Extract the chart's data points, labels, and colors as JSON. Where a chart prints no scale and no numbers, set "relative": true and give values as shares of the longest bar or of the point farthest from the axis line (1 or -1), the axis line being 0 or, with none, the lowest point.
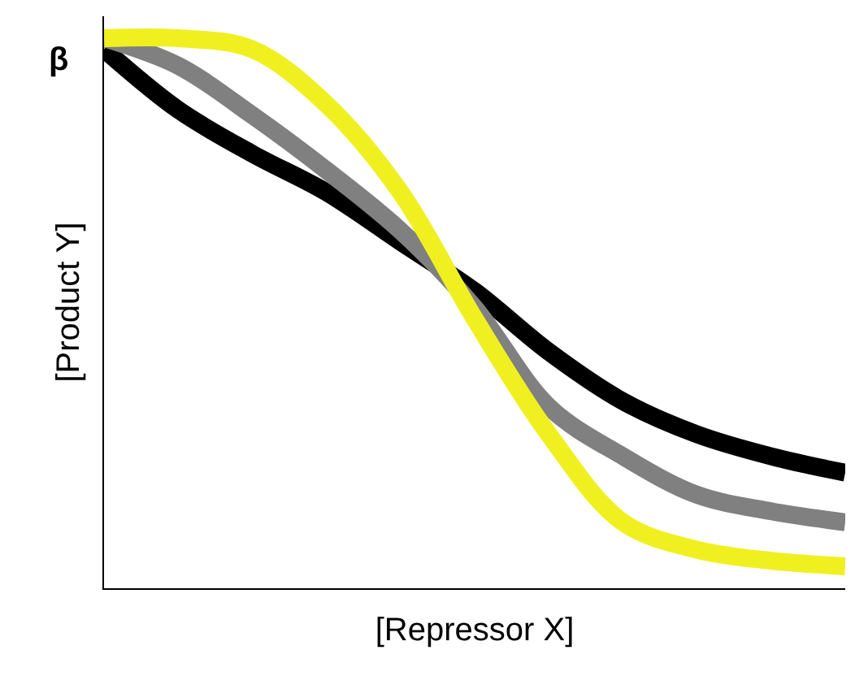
{
  "chart_data": {
    "type": "line",
    "relative": true,
    "xlabel": "[Repressor X]",
    "ylabel": "[Product Y]",
    "annotations": [
      "β"
    ],
    "categories": [
      null,
      null,
      null,
      null,
      null,
      null,
      null,
      null,
      null,
      null,
      null
    ],
    "series": [
      {
        "color": "#000000",
        "values": [
          0.98,
          0.87,
          0.79,
          0.72,
          0.63,
          0.54,
          0.43,
          0.34,
          0.28,
          0.24,
          0.21
        ]
      },
      {
        "color": "#808080",
        "values": [
          1.0,
          0.95,
          0.86,
          0.76,
          0.65,
          0.51,
          0.33,
          0.24,
          0.17,
          0.14,
          0.12
        ]
      },
      {
        "color": "#f0f020",
        "values": [
          1.0,
          1.0,
          0.98,
          0.88,
          0.72,
          0.49,
          0.28,
          0.12,
          0.07,
          0.05,
          0.04
        ]
      }
    ],
    "marker": "none",
    "line_style": "solid"
  }
}
